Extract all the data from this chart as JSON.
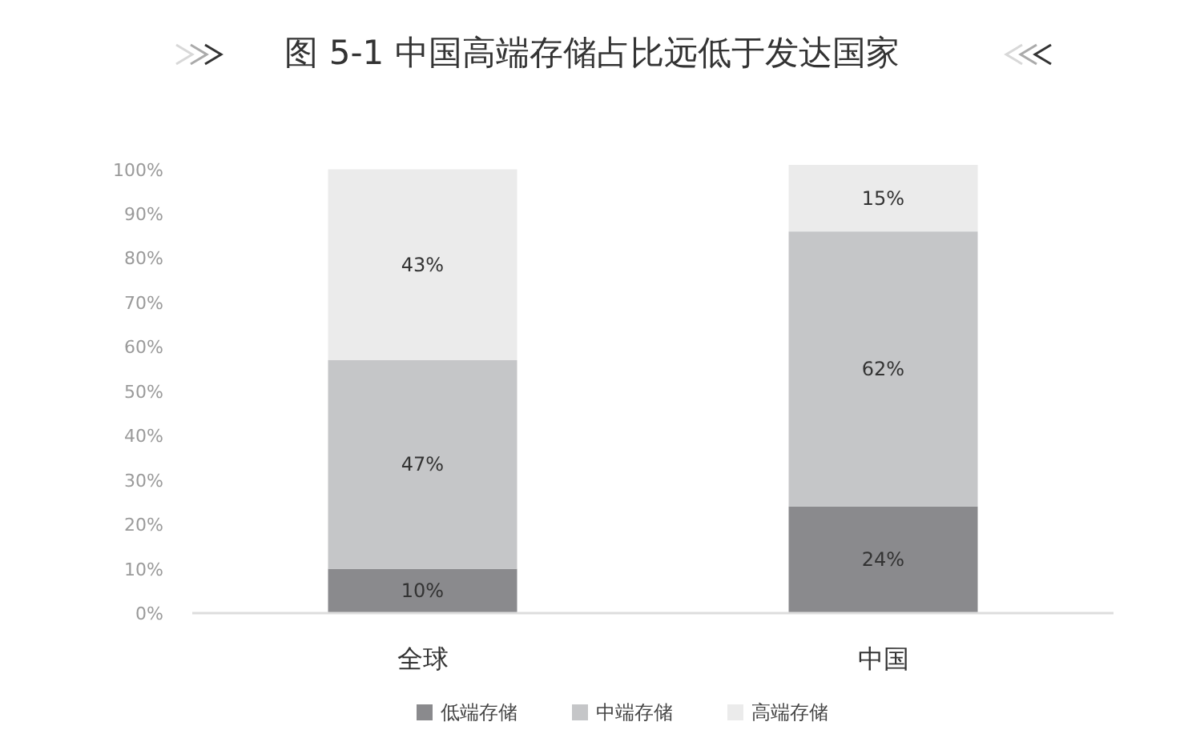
{
  "chart_data": {
    "type": "bar",
    "stacked": true,
    "title": "图 5-1 中国高端存储占比远低于发达国家",
    "categories": [
      "全球",
      "中国"
    ],
    "series": [
      {
        "name": "低端存储",
        "color": "#8a8a8d",
        "values": [
          10,
          24
        ]
      },
      {
        "name": "中端存储",
        "color": "#c5c6c8",
        "values": [
          47,
          62
        ]
      },
      {
        "name": "高端存储",
        "color": "#ebebeb",
        "values": [
          43,
          15
        ]
      }
    ],
    "ylim": [
      0,
      101
    ],
    "yticks": [
      {
        "value": 0,
        "label": "0%"
      },
      {
        "value": 10,
        "label": "10%"
      },
      {
        "value": 20,
        "label": "20%"
      },
      {
        "value": 30,
        "label": "30%"
      },
      {
        "value": 40,
        "label": "40%"
      },
      {
        "value": 50,
        "label": "50%"
      },
      {
        "value": 60,
        "label": "60%"
      },
      {
        "value": 70,
        "label": "70%"
      },
      {
        "value": 80,
        "label": "80%"
      },
      {
        "value": 90,
        "label": "90%"
      },
      {
        "value": 100,
        "label": "100%"
      }
    ],
    "value_labels": [
      [
        "10%",
        "24%"
      ],
      [
        "47%",
        "62%"
      ],
      [
        "43%",
        "15%"
      ]
    ],
    "grid": false,
    "legend": "bottom"
  }
}
